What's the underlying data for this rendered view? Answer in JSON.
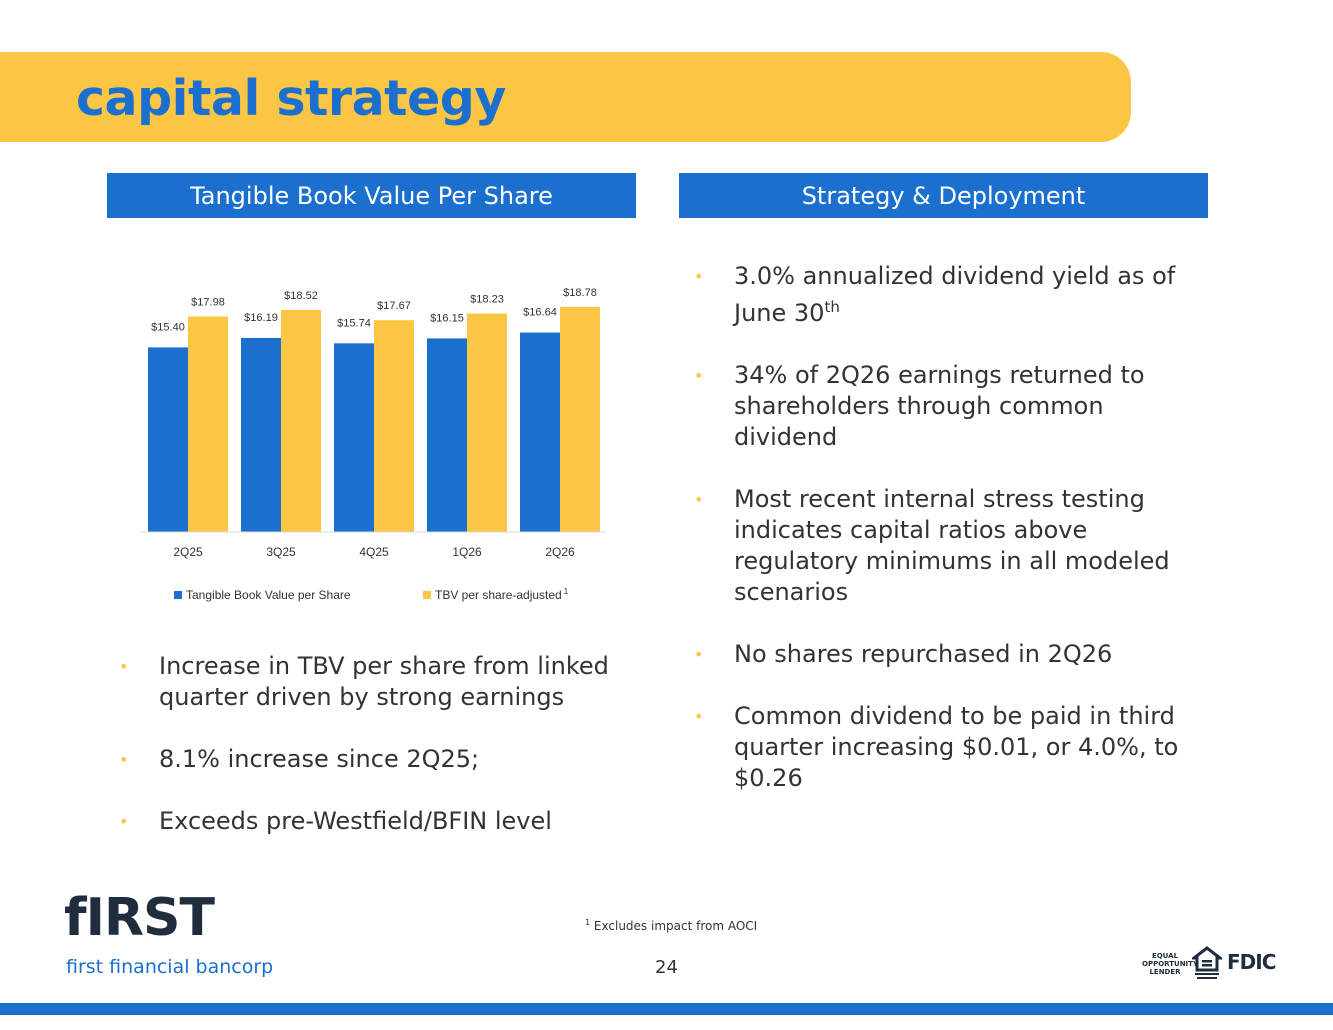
{
  "page": {
    "title": "capital strategy",
    "page_number": "24"
  },
  "left_header": "Tangible Book Value Per Share",
  "right_header": "Strategy & Deployment",
  "chart_data": {
    "type": "bar",
    "title": "",
    "categories": [
      "2Q25",
      "3Q25",
      "4Q25",
      "1Q26",
      "2Q26"
    ],
    "series": [
      {
        "name": "Tangible Book Value per Share",
        "values": [
          15.4,
          16.19,
          15.74,
          16.15,
          16.64
        ],
        "labels": [
          "$15.40",
          "$16.19",
          "$15.74",
          "$16.15",
          "$16.64"
        ],
        "color": "#1a6fcf"
      },
      {
        "name": "TBV per share-adjusted",
        "name_sup": "1",
        "values": [
          17.98,
          18.52,
          17.67,
          18.23,
          18.78
        ],
        "labels": [
          "$17.98",
          "$18.52",
          "$17.67",
          "$18.23",
          "$18.78"
        ],
        "color": "#fcc645"
      }
    ],
    "ylim": [
      0,
      20
    ],
    "legend": "bottom",
    "grid": false
  },
  "left_bullets": [
    "Increase in TBV per share from linked quarter driven by strong earnings",
    "8.1% increase since 2Q25;",
    "Exceeds pre-Westfield/BFIN level"
  ],
  "right_bullets": {
    "b1_main": "3.0% annualized dividend yield as of June 30",
    "b1_sup": "th",
    "b2": "34% of 2Q26 earnings returned to shareholders through common dividend",
    "b3": "Most recent internal stress testing indicates capital ratios above regulatory minimums in all modeled scenarios",
    "b4": "No shares repurchased in 2Q26",
    "b5": "Common dividend to be paid in third quarter increasing $0.01, or 4.0%, to $0.26"
  },
  "footnote": {
    "sup": "1",
    "text": " Excludes impact from AOCI"
  },
  "logo": {
    "word": "fIRST",
    "sub": "first financial bancorp"
  },
  "regulatory": {
    "equal_opportunity": "EQUAL OPPORTUNITY LENDER",
    "fdic": "FDIC"
  },
  "colors": {
    "brand_blue": "#1a6fcf",
    "brand_yellow": "#fcc645"
  }
}
